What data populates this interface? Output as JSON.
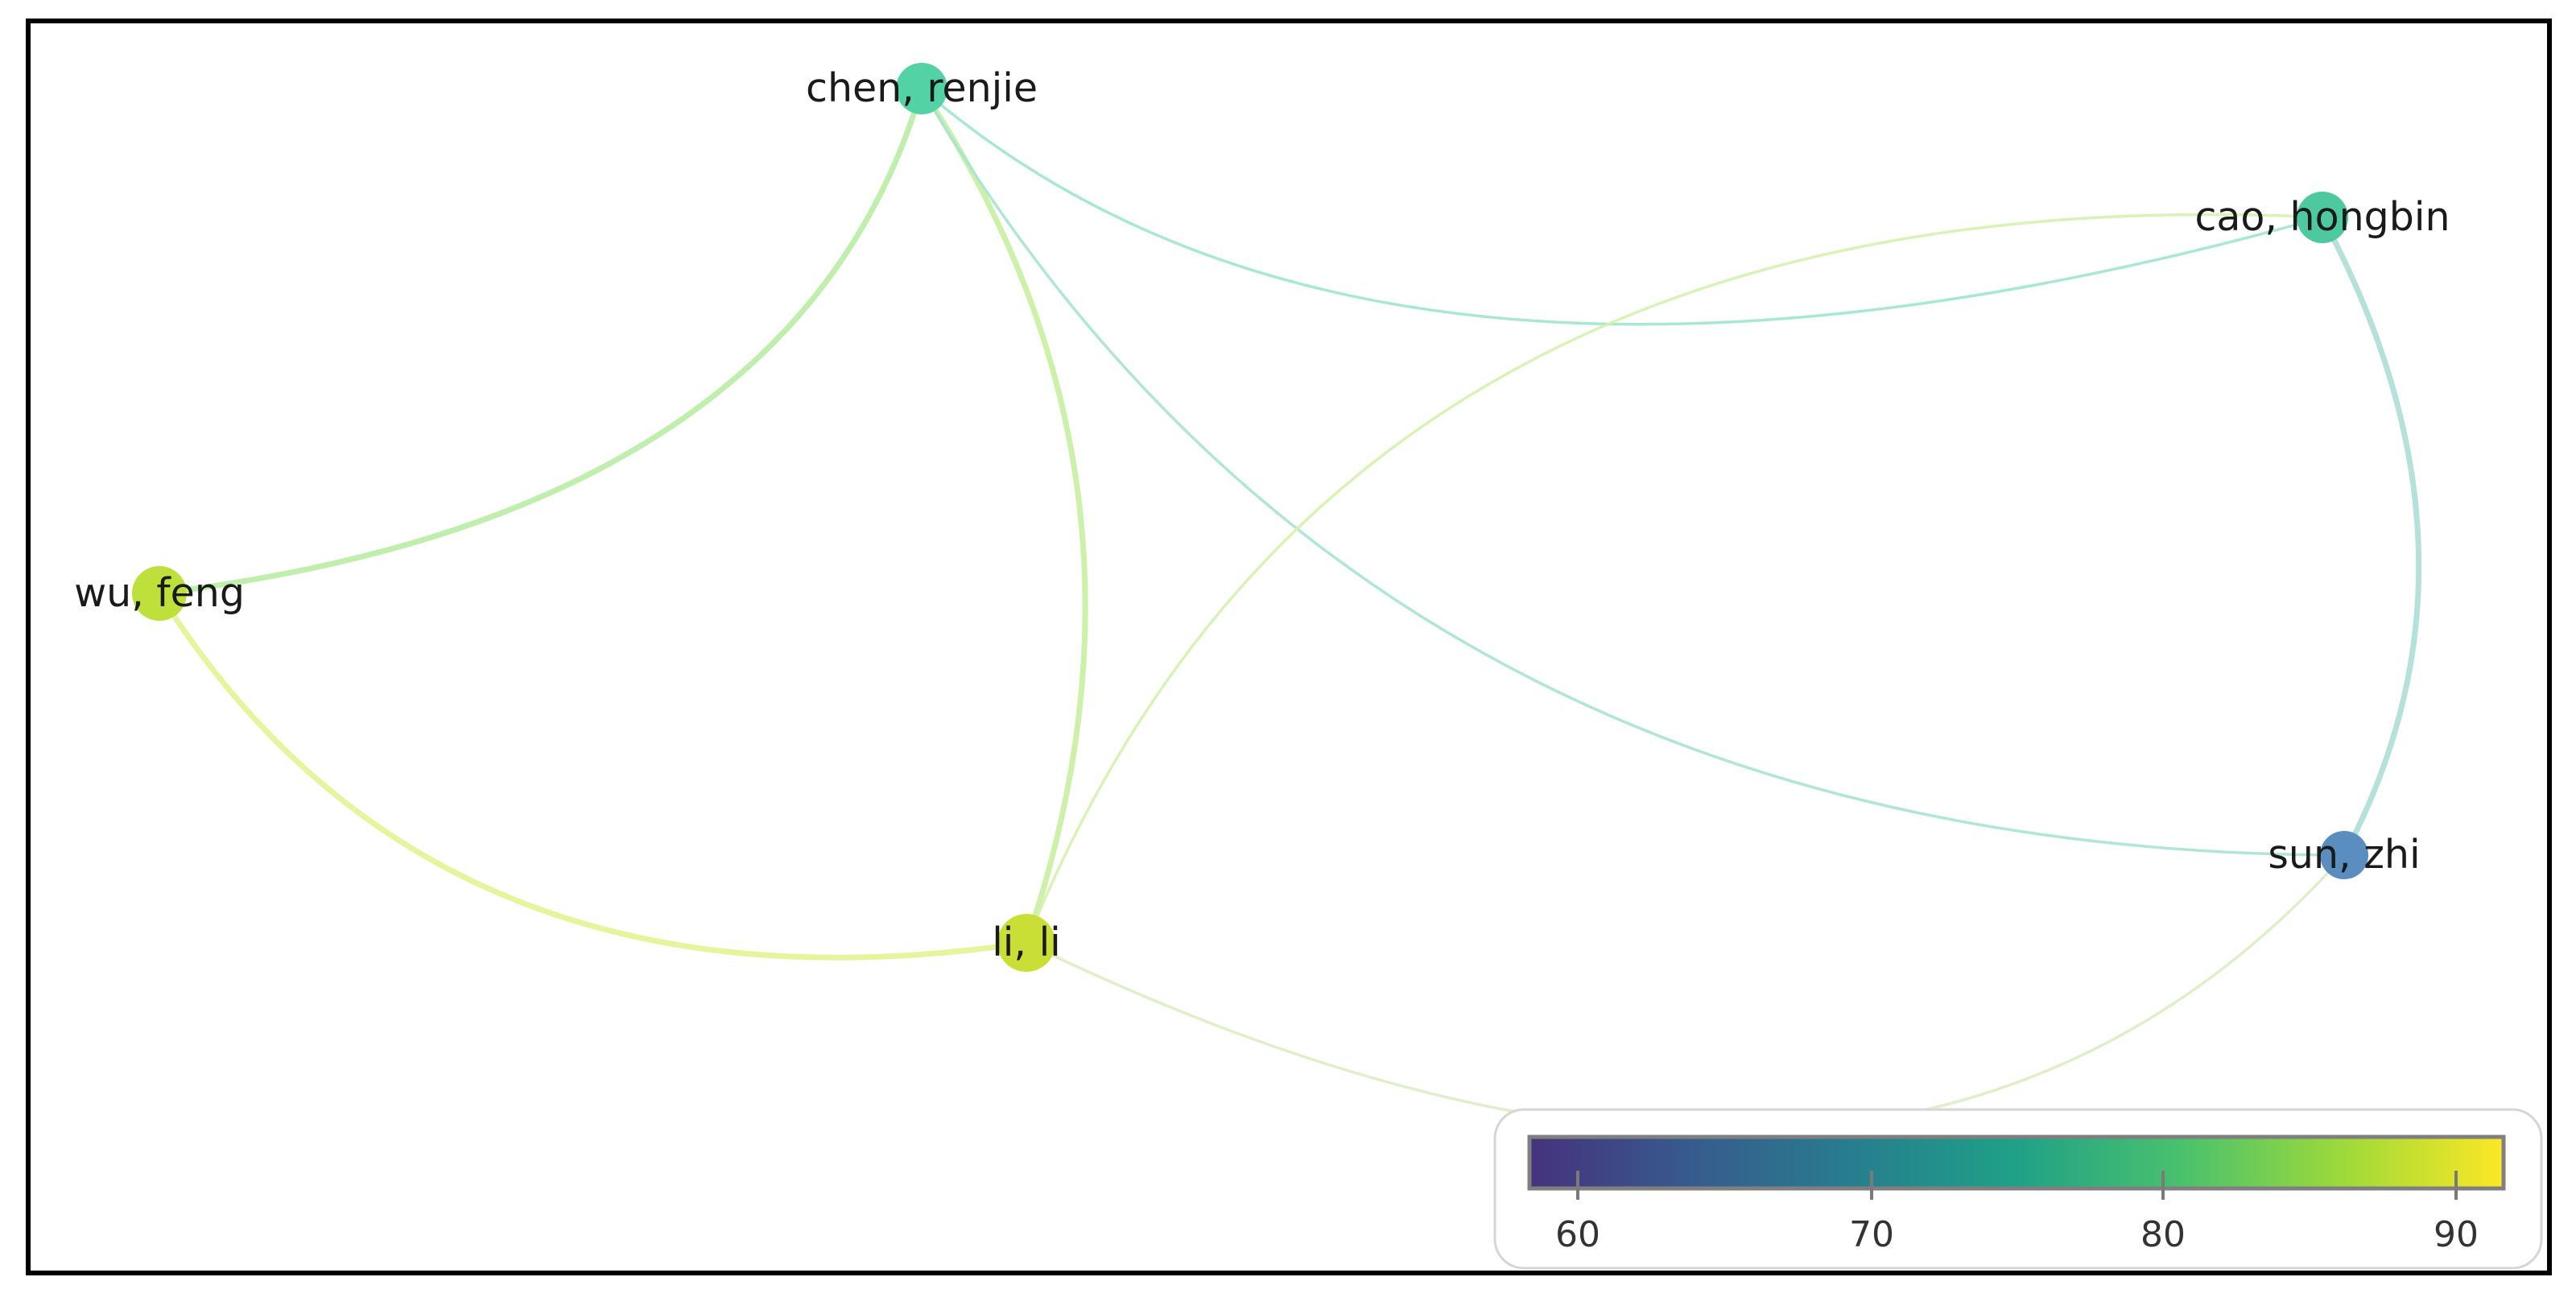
{
  "colorscale": {
    "min": 58.5,
    "max": 92,
    "ticks": [
      "60",
      "70",
      "80",
      "90"
    ],
    "stops": [
      "#46327e",
      "#365c8d",
      "#277f8e",
      "#1fa187",
      "#4ac16d",
      "#a0da39",
      "#fde725"
    ]
  },
  "nodes": [
    {
      "id": "chen",
      "label": "chen, renjie",
      "value": 77
    },
    {
      "id": "cao",
      "label": "cao, hongbin",
      "value": 76
    },
    {
      "id": "wu",
      "label": "wu, feng",
      "value": 86
    },
    {
      "id": "li",
      "label": "li, li",
      "value": 87
    },
    {
      "id": "sun",
      "label": "sun, zhi",
      "value": 68
    }
  ],
  "edges": [
    {
      "source": "chen",
      "target": "wu"
    },
    {
      "source": "chen",
      "target": "li"
    },
    {
      "source": "chen",
      "target": "cao"
    },
    {
      "source": "chen",
      "target": "sun"
    },
    {
      "source": "cao",
      "target": "li"
    },
    {
      "source": "cao",
      "target": "sun"
    },
    {
      "source": "wu",
      "target": "li"
    },
    {
      "source": "li",
      "target": "sun"
    }
  ]
}
